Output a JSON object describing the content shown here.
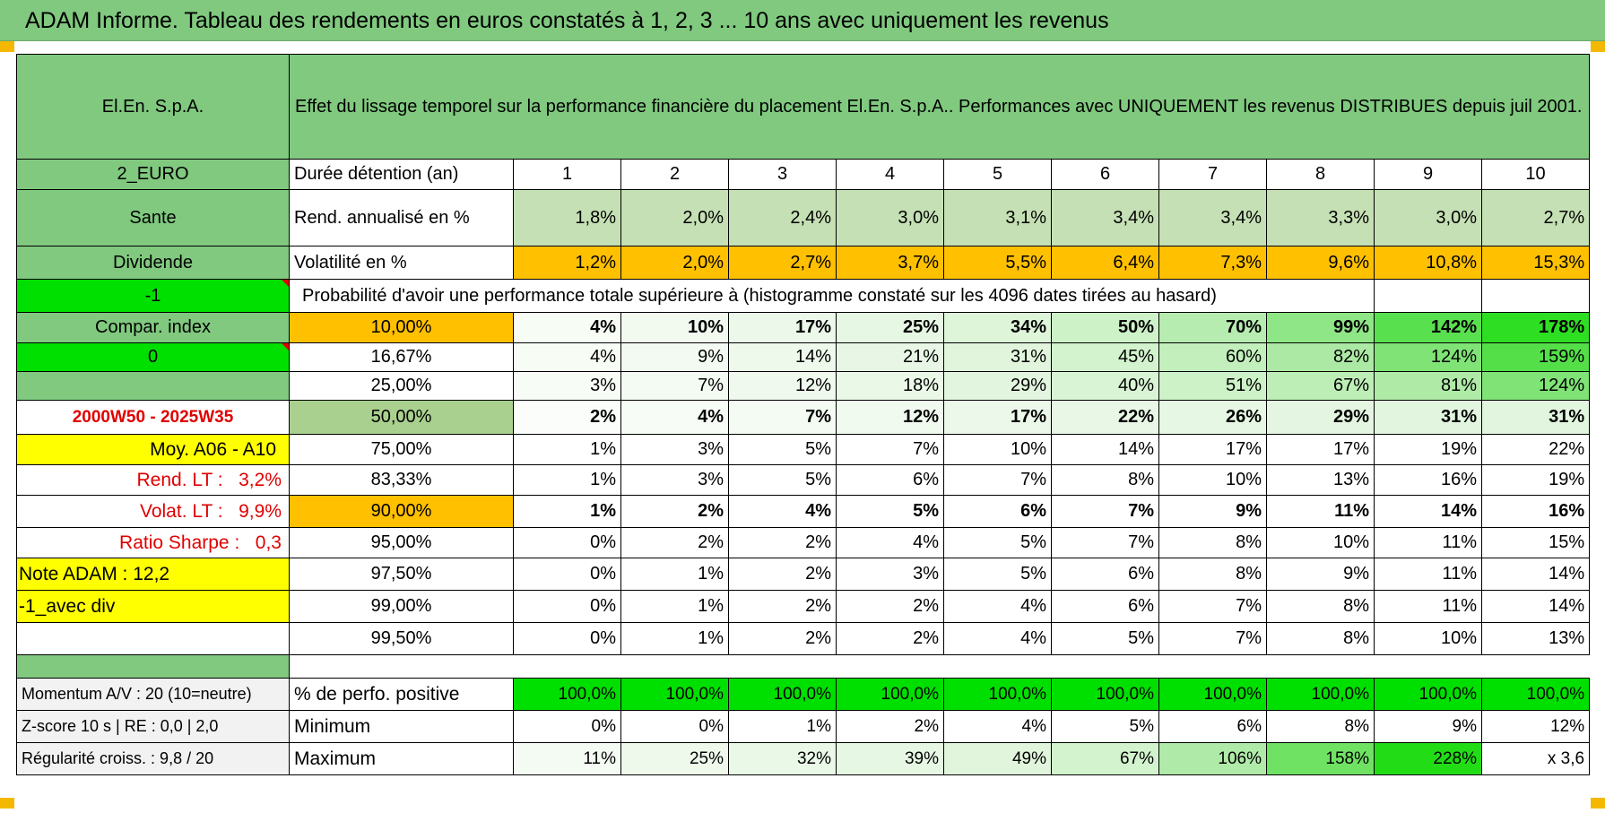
{
  "banner": {
    "title": "ADAM Informe. Tableau des rendements en euros constatés à 1, 2, 3 ... 10 ans avec uniquement les revenus"
  },
  "header": {
    "fund_name": "El.En. S.p.A.",
    "description": "Effet du lissage temporel sur la performance financière du placement El.En. S.p.A.. Performances avec UNIQUEMENT les revenus DISTRIBUES depuis juil 2001."
  },
  "side": {
    "currency": "2_EURO",
    "sector": "Sante",
    "type": "Dividende",
    "code1": "-1",
    "compar_label": "Compar. index",
    "code2": "0",
    "blank": "",
    "period": "2000W50 - 2025W35",
    "moy": "Moy. A06 - A10",
    "rend_lt_label": "Rend. LT :",
    "rend_lt_value": "3,2%",
    "volat_lt_label": "Volat. LT :",
    "volat_lt_value": "9,9%",
    "sharpe_label": "Ratio Sharpe :",
    "sharpe_value": "0,3",
    "note": "Note ADAM : 12,2",
    "avec_div": "-1_avec div"
  },
  "rows": {
    "duree_label": "Durée détention (an)",
    "years": [
      "1",
      "2",
      "3",
      "4",
      "5",
      "6",
      "7",
      "8",
      "9",
      "10"
    ],
    "rend_label": "Rend. annualisé en %",
    "rend": [
      "1,8%",
      "2,0%",
      "2,4%",
      "3,0%",
      "3,1%",
      "3,4%",
      "3,4%",
      "3,3%",
      "3,0%",
      "2,7%"
    ],
    "vol_label": "Volatilité en %",
    "vol": [
      "1,2%",
      "2,0%",
      "2,7%",
      "3,7%",
      "5,5%",
      "6,4%",
      "7,3%",
      "9,6%",
      "10,8%",
      "15,3%"
    ],
    "prob_title": "Probabilité d'avoir une performance totale supérieure à (histogramme constaté sur les 4096 dates tirées au hasard)"
  },
  "prob_table": [
    {
      "p": "10,00%",
      "v": [
        "4%",
        "10%",
        "17%",
        "25%",
        "34%",
        "50%",
        "70%",
        "99%",
        "142%",
        "178%"
      ]
    },
    {
      "p": "16,67%",
      "v": [
        "4%",
        "9%",
        "14%",
        "21%",
        "31%",
        "45%",
        "60%",
        "82%",
        "124%",
        "159%"
      ]
    },
    {
      "p": "25,00%",
      "v": [
        "3%",
        "7%",
        "12%",
        "18%",
        "29%",
        "40%",
        "51%",
        "67%",
        "81%",
        "124%"
      ]
    },
    {
      "p": "50,00%",
      "v": [
        "2%",
        "4%",
        "7%",
        "12%",
        "17%",
        "22%",
        "26%",
        "29%",
        "31%",
        "31%"
      ]
    },
    {
      "p": "75,00%",
      "v": [
        "1%",
        "3%",
        "5%",
        "7%",
        "10%",
        "14%",
        "17%",
        "17%",
        "19%",
        "22%"
      ]
    },
    {
      "p": "83,33%",
      "v": [
        "1%",
        "3%",
        "5%",
        "6%",
        "7%",
        "8%",
        "10%",
        "13%",
        "16%",
        "19%"
      ]
    },
    {
      "p": "90,00%",
      "v": [
        "1%",
        "2%",
        "4%",
        "5%",
        "6%",
        "7%",
        "9%",
        "11%",
        "14%",
        "16%"
      ]
    },
    {
      "p": "95,00%",
      "v": [
        "0%",
        "2%",
        "2%",
        "4%",
        "5%",
        "7%",
        "8%",
        "10%",
        "11%",
        "15%"
      ]
    },
    {
      "p": "97,50%",
      "v": [
        "0%",
        "1%",
        "2%",
        "3%",
        "5%",
        "6%",
        "8%",
        "9%",
        "11%",
        "14%"
      ]
    },
    {
      "p": "99,00%",
      "v": [
        "0%",
        "1%",
        "2%",
        "2%",
        "4%",
        "6%",
        "7%",
        "8%",
        "11%",
        "14%"
      ]
    },
    {
      "p": "99,50%",
      "v": [
        "0%",
        "1%",
        "2%",
        "2%",
        "4%",
        "5%",
        "7%",
        "8%",
        "10%",
        "13%"
      ]
    }
  ],
  "footer": {
    "momentum": "Momentum A/V : 20 (10=neutre)",
    "zscore": "Z-score 10 s | RE : 0,0 | 2,0",
    "regularite": "Régularité croiss. : 9,8 / 20",
    "pos_label": "% de perfo. positive",
    "pos": [
      "100,0%",
      "100,0%",
      "100,0%",
      "100,0%",
      "100,0%",
      "100,0%",
      "100,0%",
      "100,0%",
      "100,0%",
      "100,0%"
    ],
    "min_label": "Minimum",
    "min": [
      "0%",
      "0%",
      "1%",
      "2%",
      "4%",
      "5%",
      "6%",
      "8%",
      "9%",
      "12%"
    ],
    "max_label": "Maximum",
    "max": [
      "11%",
      "25%",
      "32%",
      "39%",
      "49%",
      "67%",
      "106%",
      "158%",
      "228%",
      "x 3,6"
    ]
  },
  "colors": {
    "header_green": "#80c97f",
    "pale_green": "#c5e0b4",
    "bright_green": "#00e000",
    "yellow": "#ffff00",
    "orange": "#ffc000",
    "red_text": "#e00000"
  }
}
